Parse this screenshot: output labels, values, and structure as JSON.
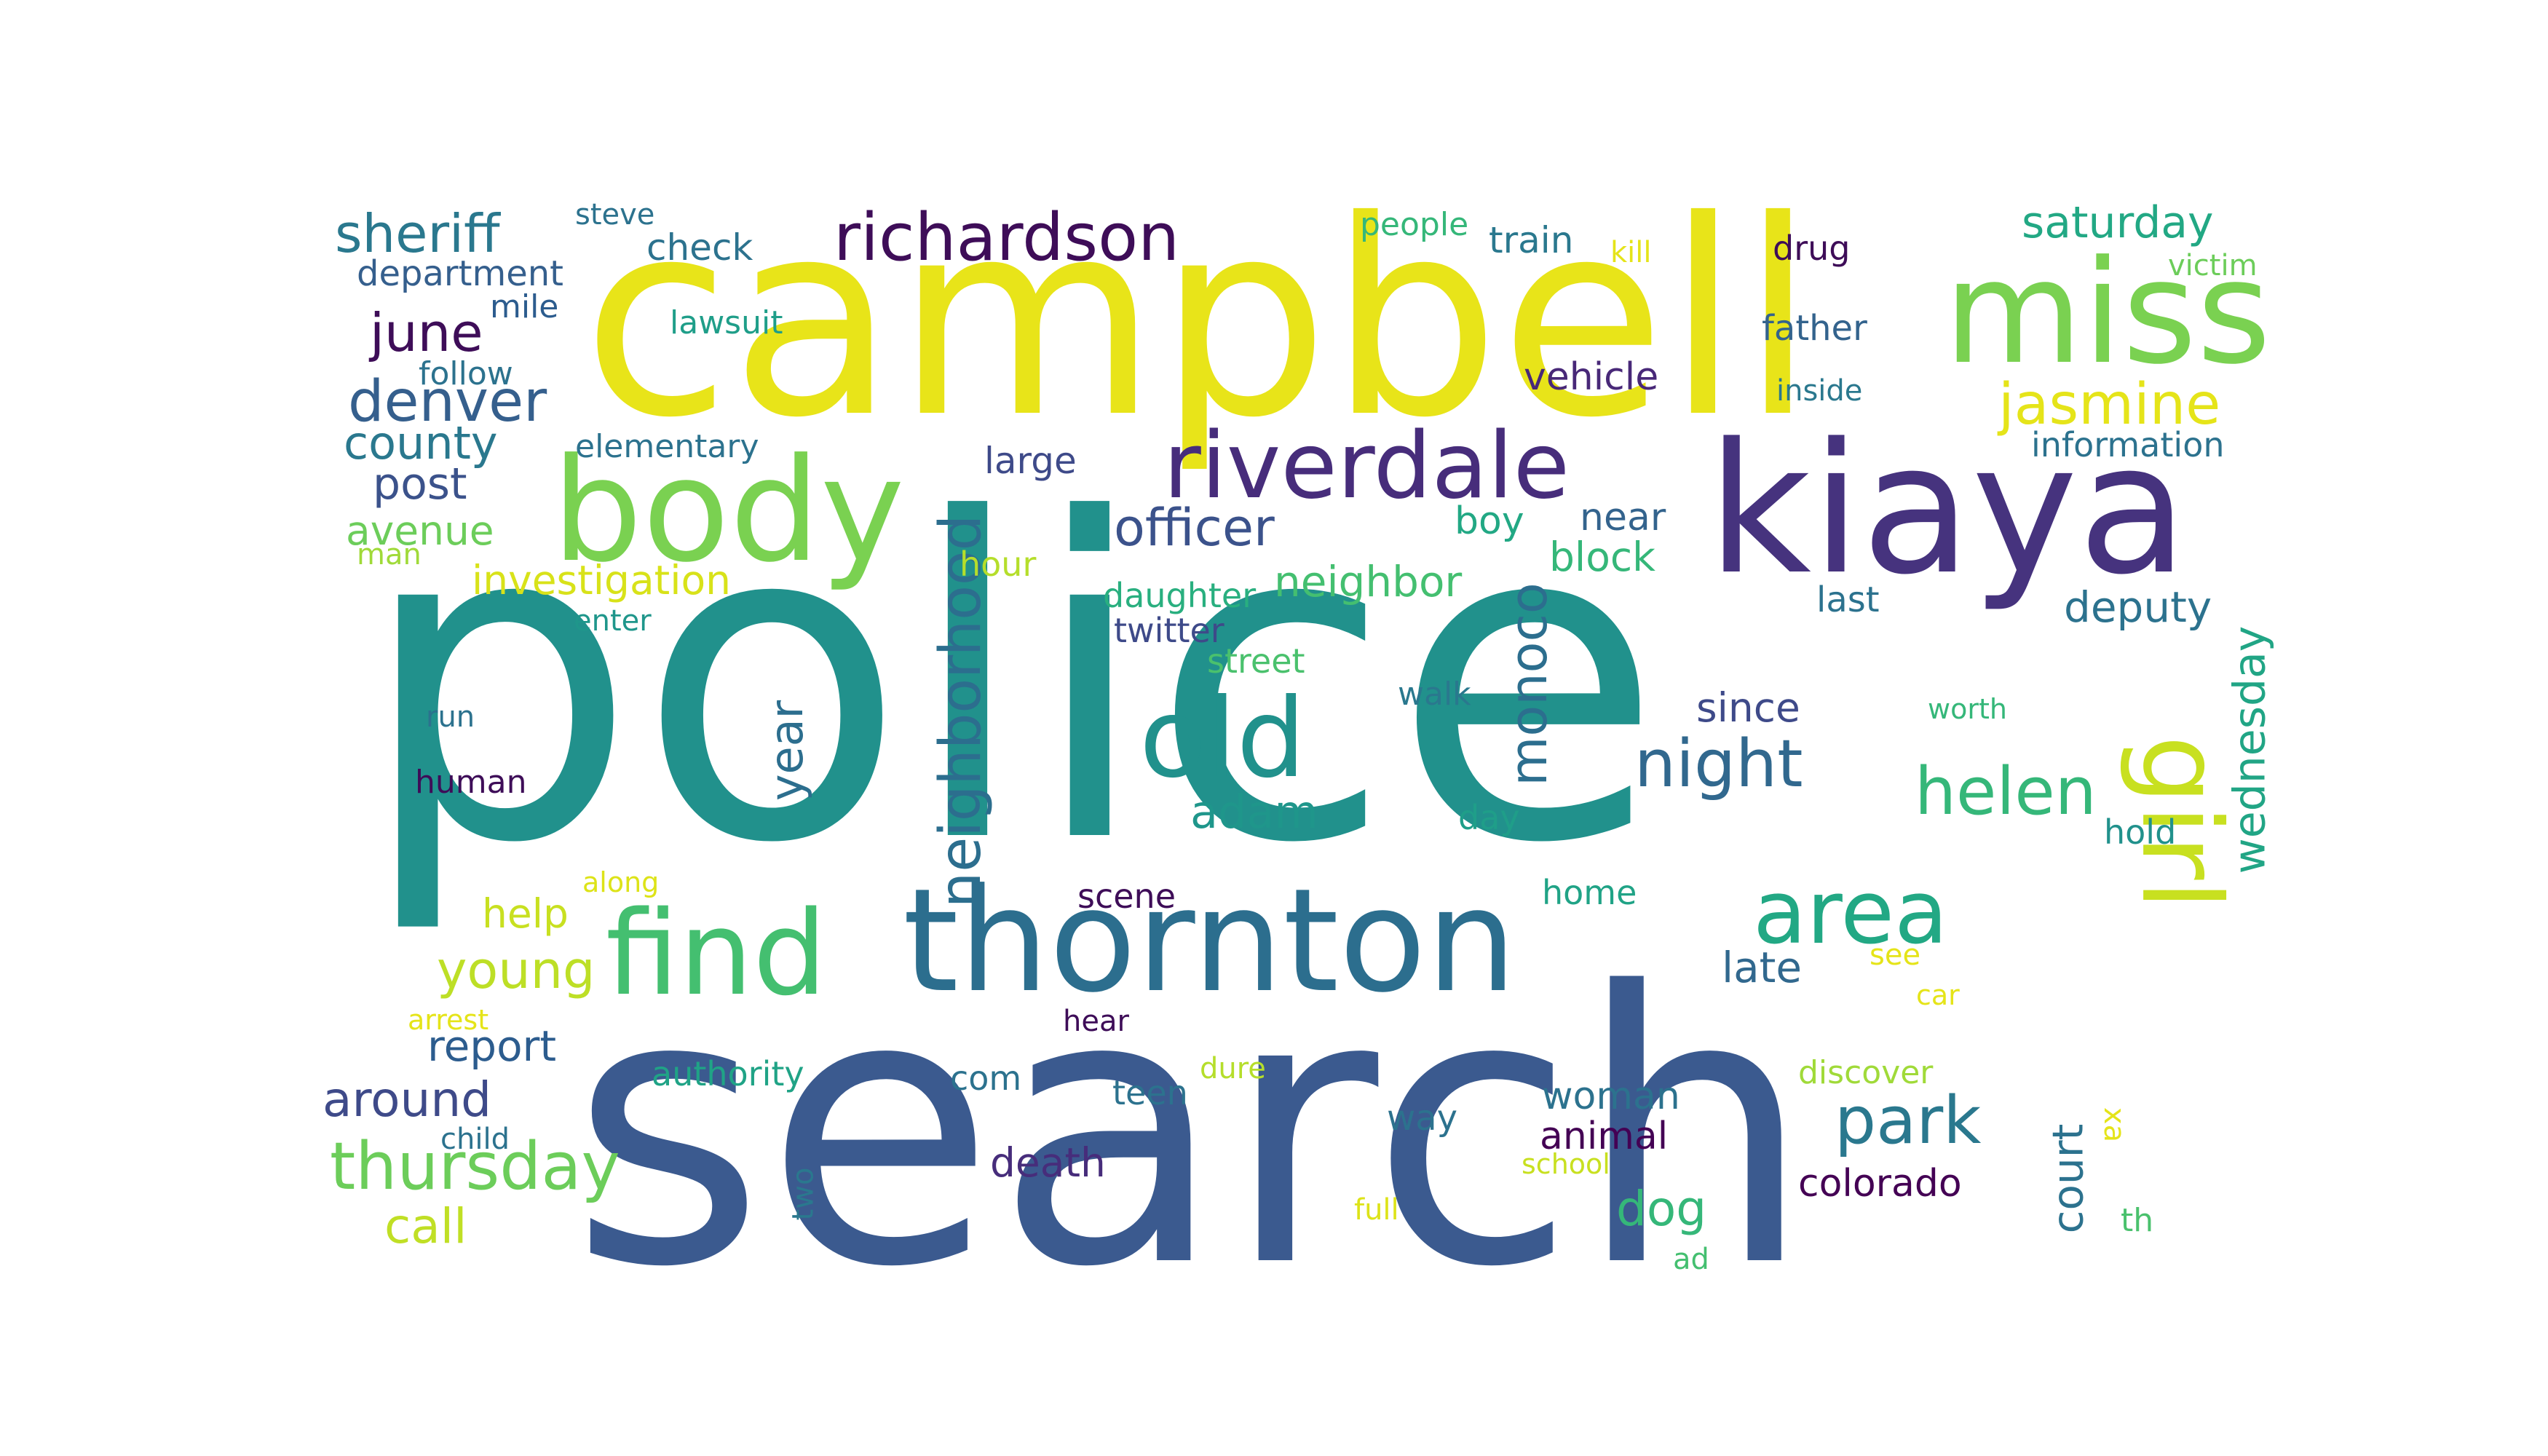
{
  "word_cloud": {
    "words": [
      {
        "text": "police",
        "color": "#21918c"
      },
      {
        "text": "search",
        "color": "#3b5a8f"
      },
      {
        "text": "campbell",
        "color": "#e8e419"
      },
      {
        "text": "kiaya",
        "color": "#46337e"
      },
      {
        "text": "miss",
        "color": "#7ad151"
      },
      {
        "text": "body",
        "color": "#7ad151"
      },
      {
        "text": "thornton",
        "color": "#2c6e8e"
      },
      {
        "text": "find",
        "color": "#44bf70"
      },
      {
        "text": "riverdale",
        "color": "#472d7b"
      },
      {
        "text": "old",
        "color": "#21918c"
      },
      {
        "text": "girl",
        "color": "#c8e020"
      },
      {
        "text": "area",
        "color": "#22a884"
      },
      {
        "text": "richardson",
        "color": "#3e0d58"
      },
      {
        "text": "neighborhood",
        "color": "#2c6e8e"
      },
      {
        "text": "night",
        "color": "#31688e"
      },
      {
        "text": "helen",
        "color": "#35b779"
      },
      {
        "text": "park",
        "color": "#2a788e"
      },
      {
        "text": "thursday",
        "color": "#6ccd5a"
      },
      {
        "text": "monoco",
        "color": "#2c6e8e"
      },
      {
        "text": "jasmine",
        "color": "#e5e419"
      },
      {
        "text": "denver",
        "color": "#355f8d"
      },
      {
        "text": "sheriff",
        "color": "#2a788e"
      },
      {
        "text": "june",
        "color": "#3e0d58"
      },
      {
        "text": "officer",
        "color": "#3b528b"
      },
      {
        "text": "wednesday",
        "color": "#21a585"
      },
      {
        "text": "young",
        "color": "#bddf26"
      },
      {
        "text": "county",
        "color": "#2a788e"
      },
      {
        "text": "saturday",
        "color": "#22a884"
      },
      {
        "text": "year",
        "color": "#2c6e8e"
      },
      {
        "text": "adam",
        "color": "#1f968b"
      },
      {
        "text": "around",
        "color": "#3e4a89"
      },
      {
        "text": "neighbor",
        "color": "#44bf70"
      },
      {
        "text": "dog",
        "color": "#35b779"
      },
      {
        "text": "court",
        "color": "#2c728e"
      },
      {
        "text": "call",
        "color": "#c0df25"
      },
      {
        "text": "post",
        "color": "#3b528b"
      },
      {
        "text": "investigation",
        "color": "#d8e219"
      },
      {
        "text": "avenue",
        "color": "#6ccd5a"
      },
      {
        "text": "deputy",
        "color": "#2c728e"
      },
      {
        "text": "since",
        "color": "#3e4a89"
      },
      {
        "text": "late",
        "color": "#31688e"
      },
      {
        "text": "report",
        "color": "#2c5c8e"
      },
      {
        "text": "block",
        "color": "#35b779"
      },
      {
        "text": "near",
        "color": "#33638d"
      },
      {
        "text": "boy",
        "color": "#22a884"
      },
      {
        "text": "vehicle",
        "color": "#482878"
      },
      {
        "text": "death",
        "color": "#472d7b"
      },
      {
        "text": "woman",
        "color": "#2c728e"
      },
      {
        "text": "animal",
        "color": "#440154"
      },
      {
        "text": "colorado",
        "color": "#440154"
      },
      {
        "text": "check",
        "color": "#2c728e"
      },
      {
        "text": "department",
        "color": "#355f8d"
      },
      {
        "text": "train",
        "color": "#2a788e"
      },
      {
        "text": "large",
        "color": "#3e4a89"
      },
      {
        "text": "father",
        "color": "#33638d"
      },
      {
        "text": "last",
        "color": "#2c728e"
      },
      {
        "text": "drug",
        "color": "#3e0d58"
      },
      {
        "text": "information",
        "color": "#2c728e"
      },
      {
        "text": "daughter",
        "color": "#29af7f"
      },
      {
        "text": "twitter",
        "color": "#3e4a89"
      },
      {
        "text": "scene",
        "color": "#3e0d58"
      },
      {
        "text": "help",
        "color": "#c8e020"
      },
      {
        "text": "home",
        "color": "#20a386"
      },
      {
        "text": "way",
        "color": "#2c728e"
      },
      {
        "text": "authority",
        "color": "#20a386"
      },
      {
        "text": "com",
        "color": "#2c728e"
      },
      {
        "text": "teen",
        "color": "#2c728e"
      },
      {
        "text": "hold",
        "color": "#21918c"
      },
      {
        "text": "day",
        "color": "#1f9e89"
      },
      {
        "text": "hour",
        "color": "#b5de2b"
      },
      {
        "text": "street",
        "color": "#4ac16d"
      },
      {
        "text": "walk",
        "color": "#2a788e"
      },
      {
        "text": "follow",
        "color": "#2c728e"
      },
      {
        "text": "mile",
        "color": "#2c5c8e"
      },
      {
        "text": "elementary",
        "color": "#2c728e"
      },
      {
        "text": "lawsuit",
        "color": "#1f9e89"
      },
      {
        "text": "steve",
        "color": "#2c728e"
      },
      {
        "text": "people",
        "color": "#35b779"
      },
      {
        "text": "kill",
        "color": "#e5e419"
      },
      {
        "text": "victim",
        "color": "#6ccd5a"
      },
      {
        "text": "inside",
        "color": "#2a788e"
      },
      {
        "text": "xa",
        "color": "#e5e419"
      },
      {
        "text": "worth",
        "color": "#35b779"
      },
      {
        "text": "discover",
        "color": "#a0da39"
      },
      {
        "text": "see",
        "color": "#e5e419"
      },
      {
        "text": "car",
        "color": "#e5e419"
      },
      {
        "text": "th",
        "color": "#4ac16d"
      },
      {
        "text": "ad",
        "color": "#44bf70"
      },
      {
        "text": "dure",
        "color": "#b5de2b"
      },
      {
        "text": "school",
        "color": "#c8e020"
      },
      {
        "text": "full",
        "color": "#dde318"
      },
      {
        "text": "two",
        "color": "#2a788e"
      },
      {
        "text": "child",
        "color": "#2c728e"
      },
      {
        "text": "arrest",
        "color": "#e5e419"
      },
      {
        "text": "along",
        "color": "#dde318"
      },
      {
        "text": "hear",
        "color": "#3e0d58"
      },
      {
        "text": "human",
        "color": "#3e0d58"
      },
      {
        "text": "run",
        "color": "#2c728e"
      },
      {
        "text": "enter",
        "color": "#1f968b"
      },
      {
        "text": "man",
        "color": "#a0da39"
      }
    ]
  }
}
